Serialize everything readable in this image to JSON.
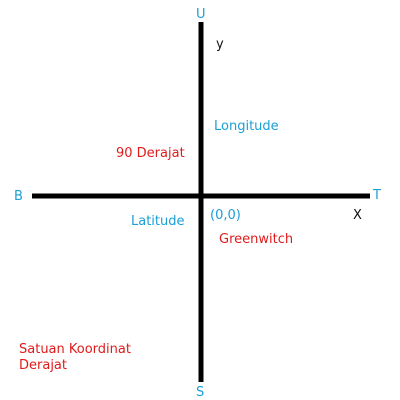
{
  "directions": {
    "north": "U",
    "south": "S",
    "west": "B",
    "east": "T"
  },
  "axes": {
    "x": "X",
    "y": "y"
  },
  "labels": {
    "longitude": "Longitude",
    "latitude": "Latitude",
    "degree": "90 Derajat",
    "origin": "(0,0)",
    "meridian": "Greenwitch",
    "unit_line1": "Satuan Koordinat",
    "unit_line2": "Derajat"
  },
  "colors": {
    "axis_line": "#000000",
    "blue_text": "#1a9fd9",
    "red_text": "#e01b1b",
    "black_text": "#111111"
  }
}
